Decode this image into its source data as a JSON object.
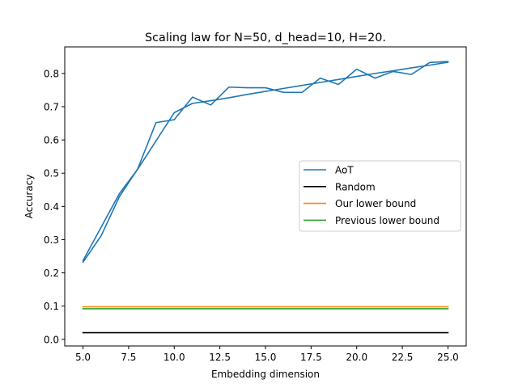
{
  "chart_data": {
    "type": "line",
    "title": "Scaling law for N=50, d_head=10, H=20.",
    "xlabel": "Embedding dimension",
    "ylabel": "Accuracy",
    "xlim": [
      4.0,
      26.0
    ],
    "ylim": [
      -0.02,
      0.88
    ],
    "xticks": [
      5.0,
      7.5,
      10.0,
      12.5,
      15.0,
      17.5,
      20.0,
      22.5,
      25.0
    ],
    "xtick_labels": [
      "5.0",
      "7.5",
      "10.0",
      "12.5",
      "15.0",
      "17.5",
      "20.0",
      "22.5",
      "25.0"
    ],
    "yticks": [
      0.0,
      0.1,
      0.2,
      0.3,
      0.4,
      0.5,
      0.6,
      0.7,
      0.8
    ],
    "ytick_labels": [
      "0.0",
      "0.1",
      "0.2",
      "0.3",
      "0.4",
      "0.5",
      "0.6",
      "0.7",
      "0.8"
    ],
    "grid": false,
    "legend": {
      "placement": "center-right"
    },
    "series": [
      {
        "name": "AoT",
        "color": "#1f77b4",
        "x": [
          5,
          6,
          7,
          8,
          9,
          10,
          11,
          12,
          13,
          14,
          15,
          16,
          17,
          18,
          19,
          20,
          21,
          22,
          23,
          24,
          25
        ],
        "y": [
          0.232,
          0.312,
          0.43,
          0.513,
          0.652,
          0.661,
          0.729,
          0.705,
          0.759,
          0.757,
          0.757,
          0.743,
          0.743,
          0.786,
          0.767,
          0.813,
          0.786,
          0.806,
          0.797,
          0.833,
          0.836
        ]
      },
      {
        "name": "",
        "color": "#1f77b4",
        "x": [
          5,
          6,
          7,
          8,
          9,
          10,
          11,
          12,
          13,
          14,
          15,
          16,
          17,
          18,
          19,
          20,
          21,
          22,
          23,
          24,
          25
        ],
        "y": [
          0.237,
          0.338,
          0.439,
          0.512,
          0.597,
          0.682,
          0.71,
          0.718,
          0.727,
          0.737,
          0.746,
          0.755,
          0.764,
          0.773,
          0.782,
          0.791,
          0.8,
          0.808,
          0.817,
          0.825,
          0.834
        ]
      },
      {
        "name": "Random",
        "color": "#000000",
        "x": [
          5,
          25
        ],
        "y": [
          0.02,
          0.02
        ]
      },
      {
        "name": "Our lower bound",
        "color": "#ff7f0e",
        "x": [
          5,
          25
        ],
        "y": [
          0.098,
          0.098
        ]
      },
      {
        "name": "Previous lower bound",
        "color": "#2ca02c",
        "x": [
          5,
          25
        ],
        "y": [
          0.092,
          0.092
        ]
      }
    ]
  }
}
